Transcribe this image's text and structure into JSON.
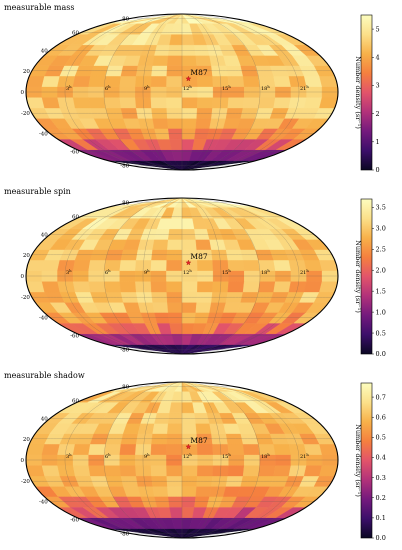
{
  "figure": {
    "colormap_stops": [
      "#0a0723",
      "#3c0f6a",
      "#741a7d",
      "#b2327a",
      "#e2546a",
      "#f5803f",
      "#f7b14a",
      "#fbe08a",
      "#fcfdbf"
    ]
  },
  "chart_data": [
    {
      "type": "heatmap",
      "projection": "mollweide",
      "title": "measurable mass",
      "annotation": {
        "label": "M87",
        "ra_hours": 12.5,
        "dec_deg": 12.4
      },
      "lat_ticks": [
        -80,
        -60,
        -40,
        -20,
        0,
        20,
        40,
        60,
        80
      ],
      "ra_ticks": [
        "3h",
        "6h",
        "9h",
        "12h",
        "15h",
        "18h",
        "21h"
      ],
      "colorbar": {
        "label": "Number density (sr⁻¹)",
        "ticks": [
          0,
          1,
          2,
          3,
          4,
          5
        ],
        "range": [
          0,
          5.5
        ]
      },
      "grid": {
        "dec_bands": [
          -90,
          -72,
          -58,
          -46,
          -35,
          -25,
          -15,
          -5,
          5,
          15,
          25,
          35,
          46,
          58,
          72,
          90
        ],
        "ra_cols": 20
      },
      "values_by_dec_band": [
        0.2,
        1.5,
        2.9,
        3.7,
        4.2,
        4.4,
        4.3,
        4.3,
        4.4,
        4.4,
        4.5,
        4.6,
        4.7,
        4.8,
        4.9
      ]
    },
    {
      "type": "heatmap",
      "projection": "mollweide",
      "title": "measurable spin",
      "annotation": {
        "label": "M87",
        "ra_hours": 12.5,
        "dec_deg": 12.4
      },
      "lat_ticks": [
        -80,
        -60,
        -40,
        -20,
        0,
        20,
        40,
        60,
        80
      ],
      "ra_ticks": [
        "3h",
        "6h",
        "9h",
        "12h",
        "15h",
        "18h",
        "21h"
      ],
      "colorbar": {
        "label": "Number density (sr⁻¹)",
        "ticks": [
          0.0,
          0.5,
          1.0,
          1.5,
          2.0,
          2.5,
          3.0,
          3.5
        ],
        "range": [
          0,
          3.7
        ]
      },
      "grid": {
        "dec_bands": [
          -90,
          -72,
          -58,
          -46,
          -35,
          -25,
          -15,
          -5,
          5,
          15,
          25,
          35,
          46,
          58,
          72,
          90
        ],
        "ra_cols": 20
      },
      "values_by_dec_band": [
        0.3,
        1.3,
        2.1,
        2.6,
        2.8,
        2.9,
        2.8,
        2.8,
        2.9,
        2.9,
        3.0,
        3.1,
        3.2,
        3.2,
        3.3
      ]
    },
    {
      "type": "heatmap",
      "projection": "mollweide",
      "title": "measurable shadow",
      "annotation": {
        "label": "M87",
        "ra_hours": 12.5,
        "dec_deg": 12.4
      },
      "lat_ticks": [
        -80,
        -60,
        -40,
        -20,
        0,
        20,
        40,
        60,
        80
      ],
      "ra_ticks": [
        "3h",
        "6h",
        "9h",
        "12h",
        "15h",
        "18h",
        "21h"
      ],
      "colorbar": {
        "label": "Number density (sr⁻¹)",
        "ticks": [
          0.0,
          0.1,
          0.2,
          0.3,
          0.4,
          0.5,
          0.6,
          0.7
        ],
        "range": [
          0,
          0.77
        ]
      },
      "grid": {
        "dec_bands": [
          -90,
          -72,
          -58,
          -46,
          -35,
          -25,
          -15,
          -5,
          5,
          15,
          25,
          35,
          46,
          58,
          72,
          90
        ],
        "ra_cols": 20
      },
      "values_by_dec_band": [
        0.03,
        0.18,
        0.38,
        0.5,
        0.55,
        0.58,
        0.57,
        0.57,
        0.58,
        0.59,
        0.6,
        0.62,
        0.64,
        0.65,
        0.66
      ]
    }
  ]
}
